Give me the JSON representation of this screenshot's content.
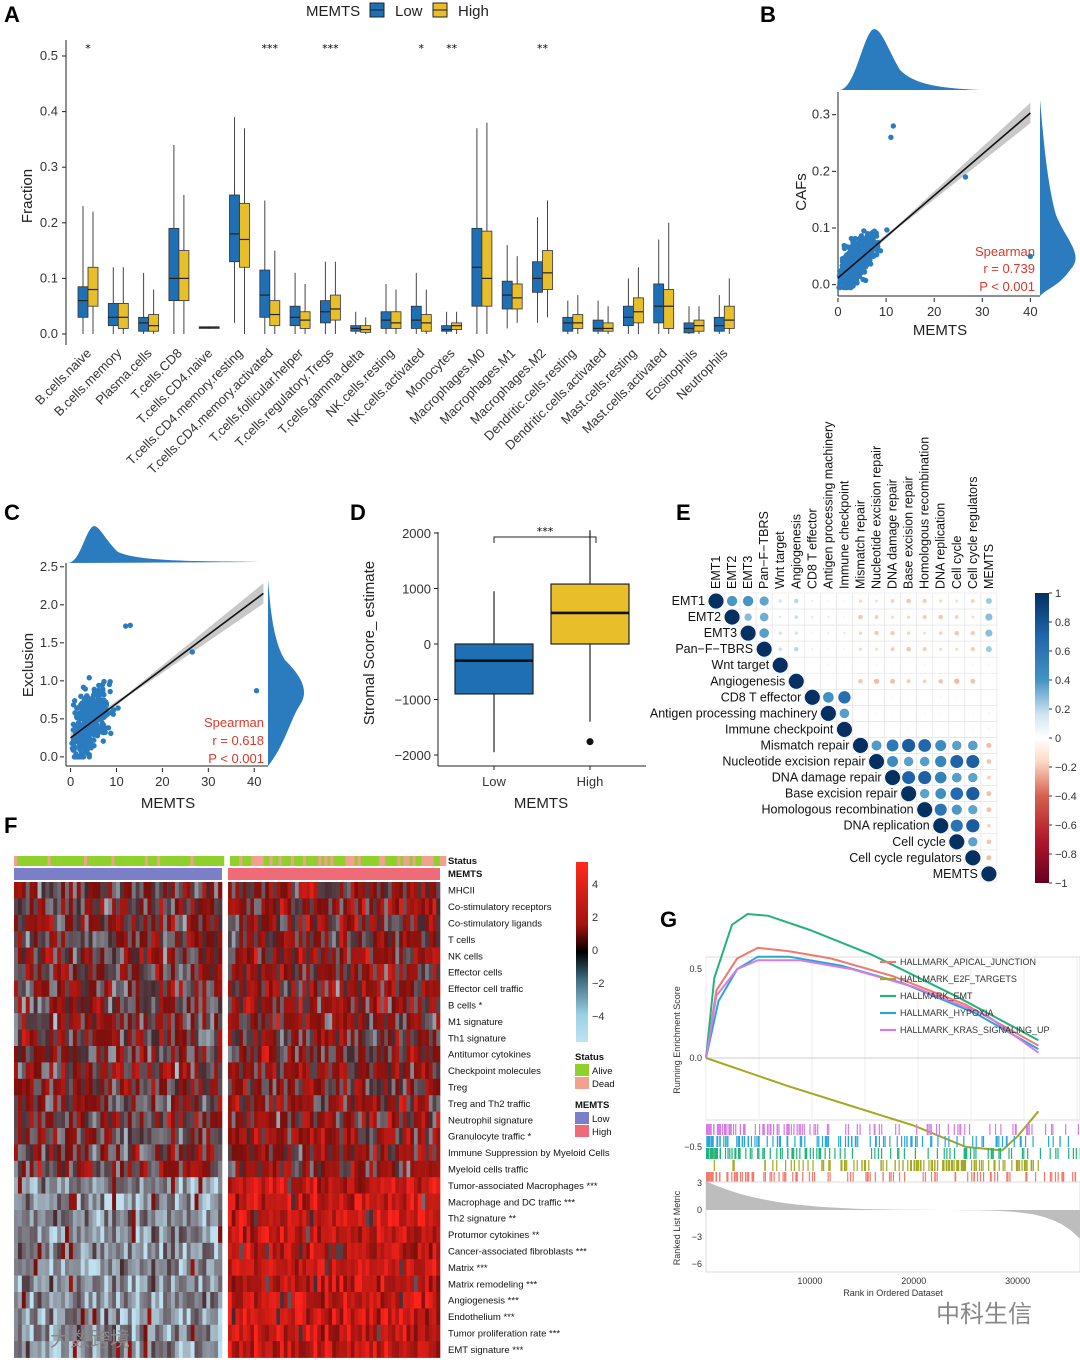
{
  "watermark": {
    "left": "大数跨境",
    "right": "中科生信"
  },
  "panels": {
    "A": "A",
    "B": "B",
    "C": "C",
    "D": "D",
    "E": "E",
    "F": "F",
    "G": "G"
  },
  "colors": {
    "low": "#1f6fb5",
    "high": "#e8bf2a",
    "scatter": "#2b7bbf",
    "red": "#d9392b"
  },
  "chart_data": [
    {
      "id": "A",
      "type": "boxplot",
      "legend_title": "MEMTS",
      "legend": [
        "Low",
        "High"
      ],
      "ylabel": "Fraction",
      "ylim": [
        0,
        0.5
      ],
      "yticks": [
        "0.0",
        "0.1",
        "0.2",
        "0.3",
        "0.4",
        "0.5"
      ],
      "categories": [
        "B.cells.naive",
        "B.cells.memory",
        "Plasma.cells",
        "T.cells.CD8",
        "T.cells.CD4.naive",
        "T.cells.CD4.memory.resting",
        "T.cells.CD4.memory.activated",
        "T.cells.follicular.helper",
        "T.cells.regulatory.Tregs",
        "T.cells.gamma.delta",
        "NK.cells.resting",
        "NK.cells.activated",
        "Monocytes",
        "Macrophages.M0",
        "Macrophages.M1",
        "Macrophages.M2",
        "Dendritic.cells.resting",
        "Dendritic.cells.activated",
        "Mast.cells.resting",
        "Mast.cells.activated",
        "Eosinophils",
        "Neutrophils"
      ],
      "significance": [
        "*",
        "",
        "",
        "",
        "",
        "",
        "***",
        "",
        "***",
        "",
        "",
        "*",
        "**",
        "",
        "",
        "**",
        "",
        "",
        "",
        "",
        "",
        ""
      ],
      "series": [
        {
          "name": "Low",
          "stats": [
            [
              0,
              0.03,
              0.06,
              0.085,
              0.23
            ],
            [
              0,
              0.015,
              0.03,
              0.055,
              0.12
            ],
            [
              0,
              0.005,
              0.02,
              0.03,
              0.11
            ],
            [
              0,
              0.06,
              0.1,
              0.19,
              0.34
            ],
            [
              0.01,
              0.01,
              0.012,
              0.013,
              0.013
            ],
            [
              0.02,
              0.13,
              0.18,
              0.25,
              0.39
            ],
            [
              0,
              0.03,
              0.07,
              0.115,
              0.24
            ],
            [
              0,
              0.015,
              0.03,
              0.05,
              0.11
            ],
            [
              0,
              0.02,
              0.04,
              0.06,
              0.13
            ],
            [
              0,
              0.005,
              0.01,
              0.015,
              0.04
            ],
            [
              0,
              0.01,
              0.025,
              0.04,
              0.09
            ],
            [
              0,
              0.01,
              0.025,
              0.05,
              0.11
            ],
            [
              0,
              0.005,
              0.008,
              0.015,
              0.04
            ],
            [
              0,
              0.05,
              0.12,
              0.19,
              0.37
            ],
            [
              0.01,
              0.045,
              0.07,
              0.095,
              0.16
            ],
            [
              0.02,
              0.075,
              0.1,
              0.13,
              0.21
            ],
            [
              0,
              0.005,
              0.02,
              0.03,
              0.06
            ],
            [
              0,
              0.005,
              0.01,
              0.025,
              0.06
            ],
            [
              0,
              0.015,
              0.03,
              0.05,
              0.1
            ],
            [
              0,
              0.02,
              0.05,
              0.09,
              0.17
            ],
            [
              0,
              0.002,
              0.01,
              0.02,
              0.05
            ],
            [
              0,
              0.005,
              0.015,
              0.03,
              0.07
            ]
          ]
        },
        {
          "name": "High",
          "stats": [
            [
              0,
              0.05,
              0.08,
              0.12,
              0.22
            ],
            [
              0,
              0.01,
              0.03,
              0.055,
              0.12
            ],
            [
              0,
              0.005,
              0.015,
              0.035,
              0.08
            ],
            [
              0,
              0.06,
              0.1,
              0.15,
              0.25
            ],
            [
              0.01,
              0.01,
              0.012,
              0.013,
              0.013
            ],
            [
              0,
              0.12,
              0.17,
              0.235,
              0.37
            ],
            [
              0,
              0.015,
              0.035,
              0.06,
              0.15
            ],
            [
              0,
              0.01,
              0.025,
              0.04,
              0.09
            ],
            [
              0,
              0.025,
              0.045,
              0.07,
              0.13
            ],
            [
              0,
              0.003,
              0.008,
              0.015,
              0.03
            ],
            [
              0,
              0.01,
              0.02,
              0.04,
              0.08
            ],
            [
              0,
              0.005,
              0.02,
              0.035,
              0.08
            ],
            [
              0,
              0.008,
              0.015,
              0.02,
              0.04
            ],
            [
              0,
              0.05,
              0.1,
              0.185,
              0.38
            ],
            [
              0.02,
              0.045,
              0.065,
              0.09,
              0.14
            ],
            [
              0.03,
              0.08,
              0.11,
              0.15,
              0.24
            ],
            [
              0,
              0.01,
              0.02,
              0.035,
              0.07
            ],
            [
              0,
              0.005,
              0.01,
              0.02,
              0.05
            ],
            [
              0,
              0.02,
              0.04,
              0.065,
              0.12
            ],
            [
              0,
              0.01,
              0.05,
              0.08,
              0.2
            ],
            [
              0,
              0.005,
              0.015,
              0.025,
              0.05
            ],
            [
              0,
              0.01,
              0.025,
              0.05,
              0.1
            ]
          ]
        }
      ]
    },
    {
      "id": "B",
      "type": "scatter",
      "xlabel": "MEMTS",
      "ylabel": "CAFs",
      "xlim": [
        0,
        42
      ],
      "ylim": [
        -0.02,
        0.34
      ],
      "xticks": [
        "0",
        "10",
        "20",
        "30",
        "40"
      ],
      "yticks": [
        "0.0",
        "0.1",
        "0.2",
        "0.3"
      ],
      "fit": {
        "x0": 0,
        "y0": 0.012,
        "x1": 40,
        "y1": 0.303
      },
      "stat": {
        "method": "Spearman",
        "r": "r = 0.739",
        "p": "P < 0.001"
      }
    },
    {
      "id": "C",
      "type": "scatter",
      "xlabel": "MEMTS",
      "ylabel": "Exclusion",
      "xlim": [
        -1,
        43
      ],
      "ylim": [
        -0.12,
        2.55
      ],
      "xticks": [
        "0",
        "10",
        "20",
        "30",
        "40"
      ],
      "yticks": [
        "0.0",
        "0.5",
        "1.0",
        "1.5",
        "2.0",
        "2.5"
      ],
      "fit": {
        "x0": 0,
        "y0": 0.25,
        "x1": 42,
        "y1": 2.15
      },
      "stat": {
        "method": "Spearman",
        "r": "r = 0.618",
        "p": "P < 0.001"
      }
    },
    {
      "id": "D",
      "type": "boxplot",
      "xlabel": "MEMTS",
      "ylabel": "Stromal Score_ estimate",
      "ylim": [
        -2100,
        2300
      ],
      "yticks": [
        "2000",
        "1000",
        "0",
        "−1000",
        "−2000"
      ],
      "categories": [
        "Low",
        "High"
      ],
      "significance": "***",
      "stats": [
        [
          -1950,
          -900,
          -300,
          0,
          950
        ],
        [
          -1400,
          0,
          560,
          1080,
          2050
        ]
      ],
      "outliers": [
        [],
        [
          -1760
        ]
      ]
    },
    {
      "id": "E",
      "type": "heatmap",
      "labels": [
        "EMT1",
        "EMT2",
        "EMT3",
        "Pan−F−TBRS",
        "Wnt target",
        "Angiogenesis",
        "CD8 T effector",
        "Antigen processing machinery",
        "Immune checkpoint",
        "Mismatch repair",
        "Nucleotide excision repair",
        "DNA damage repair",
        "Base excision repair",
        "Homologous recombination",
        "DNA replication",
        "Cell cycle",
        "Cell cycle regulators",
        "MEMTS"
      ],
      "colorbar_ticks": [
        "1",
        "0.8",
        "0.6",
        "0.4",
        "0.2",
        "0",
        "−0.2",
        "−0.4",
        "−0.6",
        "−0.8",
        "−1"
      ],
      "groups": [
        [
          0,
          3
        ],
        [
          4,
          4
        ],
        [
          5,
          5
        ],
        [
          6,
          8
        ],
        [
          9,
          16
        ],
        [
          17,
          17
        ]
      ],
      "intra": [
        0.7,
        1,
        1,
        0.85,
        0.88,
        1
      ],
      "cross_rules": "EMT vs DNA/repair negative (~-0.25); EMT vs MEMTS positive (~0.45); Angiogenesis vs DNA/repair negative; repair vs MEMTS negative (~-0.3)"
    },
    {
      "id": "F",
      "type": "heatmap",
      "status_label": "Status",
      "memts_label": "MEMTS",
      "rows": [
        "MHCII",
        "Co-stimulatory receptors",
        "Co-stimulatory ligands",
        "T cells",
        "NK cells",
        "Effector cells",
        "Effector cell traffic",
        "B cells *",
        "M1 signature",
        "Th1 signature",
        "Antitumor cytokines",
        "Checkpoint molecules",
        "Treg",
        "Treg and Th2 traffic",
        "Neutrophil signature",
        "Granulocyte traffic *",
        "Immune Suppression by Myeloid Cells",
        "Myeloid cells traffic",
        "Tumor-associated Macrophages ***",
        "Macrophage and DC traffic ***",
        "Th2 signature **",
        "Protumor cytokines **",
        "Cancer-associated fibroblasts ***",
        "Matrix ***",
        "Matrix remodeling ***",
        "Angiogenesis ***",
        "Endothelium ***",
        "Tumor proliferation rate ***",
        "EMT signature ***"
      ],
      "colorbar_ticks": [
        "4",
        "2",
        "0",
        "−2",
        "−4"
      ],
      "legend": {
        "status_title": "Status",
        "status": [
          "Alive",
          "Dead"
        ],
        "memts_title": "MEMTS",
        "memts": [
          "Low",
          "High"
        ]
      }
    },
    {
      "id": "G",
      "type": "line",
      "ylabel_top": "Running Enrichment Score",
      "ylabel_bottom": "Ranked List Metric",
      "xlabel": "Rank in Ordered Dataset",
      "xticks": [
        "10000",
        "20000",
        "30000"
      ],
      "yticks_top": [
        "0.5",
        "0.0",
        "−0.5"
      ],
      "yticks_bottom": [
        "3",
        "0",
        "−3",
        "−6"
      ],
      "series": [
        {
          "name": "HALLMARK_APICAL_JUNCTION",
          "color": "#f07a6e",
          "points": [
            [
              0,
              0
            ],
            [
              1000,
              0.38
            ],
            [
              3000,
              0.56
            ],
            [
              5000,
              0.62
            ],
            [
              8000,
              0.6
            ],
            [
              12000,
              0.56
            ],
            [
              18000,
              0.46
            ],
            [
              25000,
              0.3
            ],
            [
              32000,
              0.07
            ]
          ]
        },
        {
          "name": "HALLMARK_E2F_TARGETS",
          "color": "#a3a81e",
          "points": [
            [
              0,
              0
            ],
            [
              3000,
              -0.06
            ],
            [
              8000,
              -0.16
            ],
            [
              14000,
              -0.27
            ],
            [
              20000,
              -0.38
            ],
            [
              25000,
              -0.5
            ],
            [
              28500,
              -0.52
            ],
            [
              30000,
              -0.44
            ],
            [
              32000,
              -0.3
            ]
          ]
        },
        {
          "name": "HALLMARK_EMT",
          "color": "#20b37c",
          "points": [
            [
              0,
              0
            ],
            [
              800,
              0.45
            ],
            [
              2500,
              0.75
            ],
            [
              4000,
              0.81
            ],
            [
              6000,
              0.8
            ],
            [
              10000,
              0.72
            ],
            [
              16000,
              0.58
            ],
            [
              24000,
              0.35
            ],
            [
              32000,
              0.1
            ]
          ]
        },
        {
          "name": "HALLMARK_HYPOXIA",
          "color": "#2aa6d5",
          "points": [
            [
              0,
              0
            ],
            [
              1200,
              0.32
            ],
            [
              3000,
              0.5
            ],
            [
              5000,
              0.57
            ],
            [
              8000,
              0.57
            ],
            [
              13000,
              0.52
            ],
            [
              19000,
              0.42
            ],
            [
              26000,
              0.25
            ],
            [
              32000,
              0.05
            ]
          ]
        },
        {
          "name": "HALLMARK_KRAS_SIGNALING_UP",
          "color": "#d77be3",
          "points": [
            [
              0,
              0
            ],
            [
              1000,
              0.35
            ],
            [
              3000,
              0.5
            ],
            [
              5000,
              0.55
            ],
            [
              9000,
              0.55
            ],
            [
              14000,
              0.5
            ],
            [
              20000,
              0.4
            ],
            [
              27000,
              0.24
            ],
            [
              32000,
              0.03
            ]
          ]
        }
      ]
    }
  ]
}
